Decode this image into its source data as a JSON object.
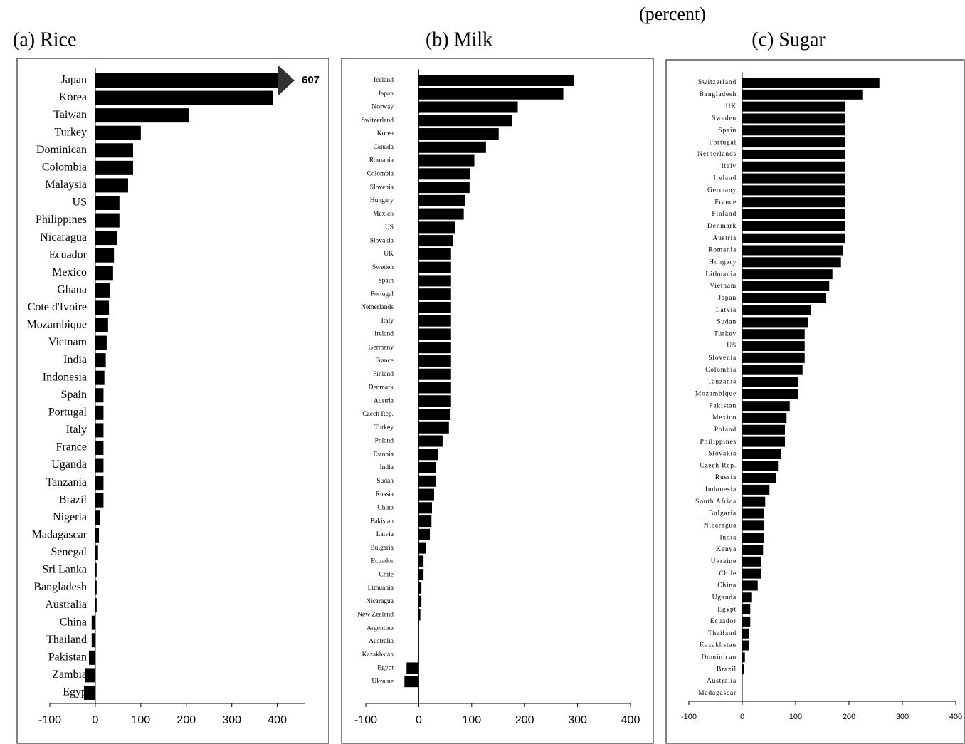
{
  "header": {
    "title": "(percent)"
  },
  "chart_data": [
    {
      "type": "barh",
      "title": "(a) Rice",
      "color": "#000000",
      "categories": [
        "Japan",
        "Korea",
        "Taiwan",
        "Turkey",
        "Dominican",
        "Colombia",
        "Malaysia",
        "US",
        "Philippines",
        "Nicaragua",
        "Ecuador",
        "Mexico",
        "Ghana",
        "Cote d'Ivoire",
        "Mozambique",
        "Vietnam",
        "India",
        "Indonesia",
        "Spain",
        "Portugal",
        "Italy",
        "France",
        "Uganda",
        "Tanzania",
        "Brazil",
        "Nigeria",
        "Madagascar",
        "Senegal",
        "Sri Lanka",
        "Bangladesh",
        "Australia",
        "China",
        "Thailand",
        "Pakistan",
        "Zambia",
        "Egyp"
      ],
      "values": [
        607,
        390,
        205,
        100,
        83,
        83,
        72,
        53,
        53,
        48,
        41,
        39,
        33,
        30,
        28,
        25,
        23,
        20,
        18,
        18,
        18,
        18,
        18,
        18,
        18,
        11,
        8,
        6,
        3,
        3,
        3,
        -8,
        -8,
        -14,
        -23,
        -25
      ],
      "value_labels": [
        "607",
        null,
        null,
        null,
        null,
        null,
        null,
        null,
        null,
        null,
        null,
        null,
        null,
        null,
        null,
        null,
        null,
        null,
        null,
        null,
        null,
        null,
        null,
        null,
        null,
        null,
        null,
        null,
        null,
        null,
        null,
        null,
        null,
        null,
        null,
        null
      ],
      "xlim": [
        -100,
        460
      ],
      "xticks": [
        -100,
        0,
        100,
        200,
        300,
        400
      ]
    },
    {
      "type": "barh",
      "title": "(b) Milk",
      "color": "#000000",
      "categories": [
        "Iceland",
        "Japan",
        "Norway",
        "Switzerland",
        "Korea",
        "Canada",
        "Romania",
        "Colombia",
        "Slovenia",
        "Hungary",
        "Mexico",
        "US",
        "Slovakia",
        "UK",
        "Sweden",
        "Spain",
        "Portugal",
        "Netherlands",
        "Italy",
        "Ireland",
        "Germany",
        "France",
        "Finland",
        "Denmark",
        "Austria",
        "Czech Rep.",
        "Turkey",
        "Poland",
        "Estonia",
        "India",
        "Sudan",
        "Russia",
        "China",
        "Pakistan",
        "Latvia",
        "Bulgaria",
        "Ecuador",
        "Chile",
        "Lithuania",
        "Nicaragua",
        "New Zealand",
        "Argentina",
        "Australia",
        "Kazakhstan",
        "Egypt",
        "Ukraine"
      ],
      "values": [
        293,
        273,
        187,
        176,
        151,
        127,
        105,
        97,
        96,
        88,
        85,
        68,
        64,
        61,
        61,
        61,
        61,
        61,
        61,
        61,
        61,
        61,
        61,
        61,
        61,
        60,
        57,
        45,
        36,
        33,
        32,
        29,
        25,
        24,
        21,
        13,
        9,
        9,
        5,
        5,
        3,
        0,
        0,
        0,
        -23,
        -27
      ],
      "xlim": [
        -100,
        400
      ],
      "xticks": [
        -100,
        0,
        100,
        200,
        300,
        400
      ]
    },
    {
      "type": "barh",
      "title": "(c) Sugar",
      "color": "#000000",
      "categories": [
        "Switzerland",
        "Bangladesh",
        "UK",
        "Sweden",
        "Spain",
        "Portugal",
        "Netherlands",
        "Italy",
        "Ireland",
        "Germany",
        "France",
        "Finland",
        "Denmark",
        "Austria",
        "Romania",
        "Hungary",
        "Lithuania",
        "Vietnam",
        "Japan",
        "Latvia",
        "Sudan",
        "Turkey",
        "US",
        "Slovenia",
        "Colombia",
        "Tanzania",
        "Mozambique",
        "Pakistan",
        "Mexico",
        "Poland",
        "Philippines",
        "Slovakia",
        "Czech Rep.",
        "Russia",
        "Indonesia",
        "South Africa",
        "Bulgaria",
        "Nicaragua",
        "India",
        "Kenya",
        "Ukraine",
        "Chile",
        "China",
        "Uganda",
        "Egypt",
        "Ecuador",
        "Thailand",
        "Kazakhstan",
        "Dominican",
        "Brazil",
        "Australia",
        "Madagascar"
      ],
      "values": [
        257,
        225,
        192,
        192,
        192,
        192,
        192,
        192,
        192,
        192,
        192,
        192,
        192,
        192,
        188,
        185,
        169,
        163,
        157,
        129,
        123,
        117,
        117,
        117,
        113,
        104,
        104,
        89,
        83,
        80,
        80,
        72,
        67,
        64,
        51,
        43,
        40,
        40,
        40,
        39,
        36,
        36,
        29,
        17,
        15,
        15,
        12,
        12,
        5,
        4,
        0,
        0
      ],
      "xlim": [
        -100,
        400
      ],
      "xticks": [
        -100,
        0,
        100,
        200,
        300,
        400
      ]
    }
  ]
}
